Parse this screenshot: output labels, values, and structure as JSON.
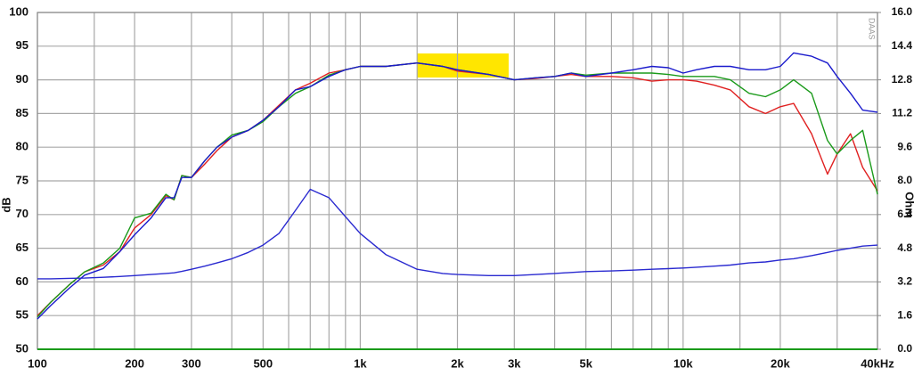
{
  "chart_data": {
    "type": "line",
    "log_x": true,
    "y_label": "dB",
    "y2_label": "Ohm",
    "watermark": "DAAS",
    "x": [
      100,
      110,
      125,
      140,
      160,
      180,
      200,
      225,
      250,
      265,
      280,
      300,
      330,
      360,
      400,
      450,
      500,
      560,
      630,
      700,
      800,
      900,
      1000,
      1200,
      1500,
      1800,
      2000,
      2500,
      3000,
      3500,
      4000,
      4500,
      5000,
      6000,
      7000,
      8000,
      9000,
      10000,
      11000,
      12500,
      14000,
      16000,
      18000,
      20000,
      22000,
      25000,
      28000,
      30000,
      33000,
      36000,
      40000
    ],
    "series": [
      {
        "color": "#e02020",
        "values": [
          55,
          57,
          59.5,
          61.5,
          62.5,
          64.5,
          68,
          70,
          72.8,
          72.2,
          75.8,
          75.5,
          77.5,
          79.5,
          81.5,
          82.5,
          84,
          86.2,
          88.5,
          89.5,
          91,
          91.5,
          92,
          92,
          92.5,
          92,
          91.3,
          90.8,
          90,
          90.2,
          90.5,
          90.8,
          90.5,
          90.5,
          90.3,
          89.8,
          90,
          90,
          89.8,
          89.2,
          88.5,
          86,
          85,
          86,
          86.5,
          82,
          76,
          79,
          82,
          77,
          73.5
        ]
      },
      {
        "color": "#1a9a1a",
        "values": [
          54.8,
          57,
          59.5,
          61.5,
          62.8,
          65,
          69.5,
          70.2,
          73,
          72.2,
          75.8,
          75.5,
          78,
          80,
          81.8,
          82.5,
          83.8,
          86,
          88,
          89,
          90.7,
          91.5,
          92,
          92,
          92.5,
          92,
          91.5,
          90.8,
          90,
          90.3,
          90.5,
          91,
          90.7,
          91,
          91,
          91,
          90.8,
          90.5,
          90.5,
          90.5,
          90,
          88,
          87.5,
          88.5,
          90,
          88,
          81,
          79,
          81,
          82.5,
          73
        ]
      },
      {
        "color": "#1a1acc",
        "values": [
          54.5,
          56.5,
          59,
          61,
          62,
          64.5,
          67,
          69.5,
          72.5,
          72.5,
          75.5,
          75.5,
          78,
          80,
          81.5,
          82.5,
          84,
          86,
          88.5,
          89,
          90.5,
          91.5,
          92,
          92,
          92.5,
          92,
          91.5,
          90.8,
          90,
          90.3,
          90.5,
          91,
          90.5,
          91,
          91.5,
          92,
          91.8,
          91,
          91.5,
          92,
          92,
          91.5,
          91.5,
          92,
          94,
          93.5,
          92.5,
          90.5,
          88,
          85.5,
          85.2
        ]
      },
      {
        "color": "#2a2ad0",
        "axis": "y2",
        "values": [
          3.35,
          3.35,
          3.37,
          3.38,
          3.42,
          3.46,
          3.5,
          3.55,
          3.6,
          3.63,
          3.7,
          3.8,
          3.95,
          4.1,
          4.3,
          4.6,
          4.95,
          5.5,
          6.6,
          7.6,
          7.2,
          6.3,
          5.5,
          4.5,
          3.8,
          3.6,
          3.55,
          3.5,
          3.5,
          3.55,
          3.6,
          3.65,
          3.69,
          3.72,
          3.76,
          3.8,
          3.83,
          3.86,
          3.9,
          3.95,
          4.0,
          4.1,
          4.15,
          4.24,
          4.3,
          4.45,
          4.6,
          4.7,
          4.8,
          4.9,
          4.95
        ]
      }
    ],
    "xlim": [
      100,
      40000
    ],
    "xticks": [
      100,
      200,
      300,
      500,
      {
        "value": 1000,
        "label": "1k"
      },
      {
        "value": 2000,
        "label": "2k"
      },
      {
        "value": 3000,
        "label": "3k"
      },
      {
        "value": 5000,
        "label": "5k"
      },
      {
        "value": 10000,
        "label": "10k"
      },
      {
        "value": 20000,
        "label": "20k"
      },
      {
        "value": 40000,
        "label": "40kHz"
      }
    ],
    "xgrid": [
      150,
      400,
      600,
      700,
      800,
      900,
      1500,
      4000,
      6000,
      7000,
      8000,
      9000,
      15000,
      30000
    ],
    "ylim": [
      50,
      100
    ],
    "yticks": [
      50,
      55,
      60,
      65,
      70,
      75,
      80,
      85,
      90,
      95,
      100
    ],
    "y2lim": [
      0,
      16
    ],
    "y2ticks": [
      {
        "value": 0,
        "label": "0.0"
      },
      1.6,
      3.2,
      4.8,
      6.4,
      {
        "value": 8,
        "label": "8.0"
      },
      9.6,
      11.2,
      12.8,
      14.4,
      {
        "value": 16,
        "label": "16.0"
      }
    ],
    "grid": true
  }
}
